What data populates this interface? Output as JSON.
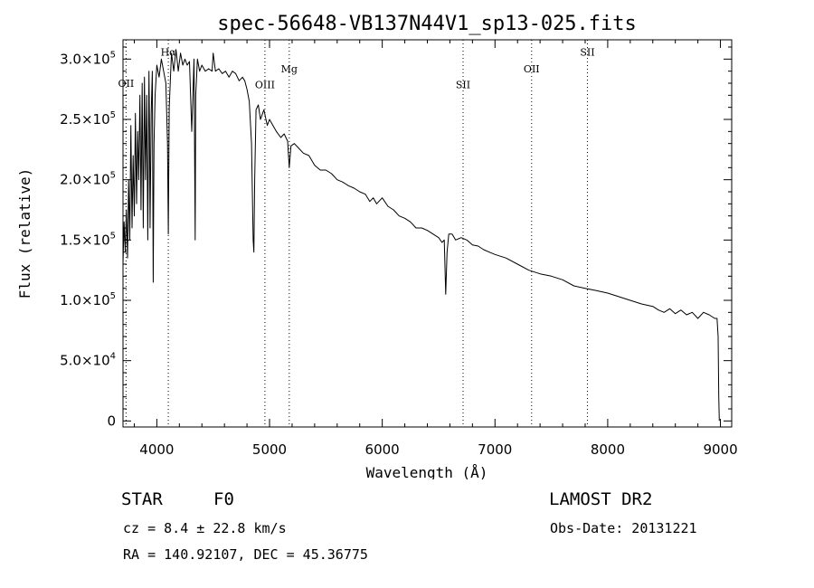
{
  "chart_data": {
    "type": "line",
    "title": "spec-56648-VB137N44V1_sp13-025.fits",
    "xlabel": "Wavelength (Å)",
    "ylabel": "Flux (relative)",
    "xlim": [
      3700,
      9100
    ],
    "ylim": [
      -5000,
      316000
    ],
    "x_ticks": [
      4000,
      5000,
      6000,
      7000,
      8000,
      9000
    ],
    "y_ticks": [
      {
        "value": 0,
        "label": "0"
      },
      {
        "value": 50000,
        "label": "5.0×10^4"
      },
      {
        "value": 100000,
        "label": "1.0×10^5"
      },
      {
        "value": 150000,
        "label": "1.5×10^5"
      },
      {
        "value": 200000,
        "label": "2.0×10^5"
      },
      {
        "value": 250000,
        "label": "2.5×10^5"
      },
      {
        "value": 300000,
        "label": "3.0×10^5"
      }
    ],
    "line_markers": [
      {
        "label": "OII",
        "x": 3727,
        "label_y": 277000
      },
      {
        "label": "Hα",
        "x": 4102,
        "label_y": 303000
      },
      {
        "label": "OIII",
        "x": 4959,
        "label_y": 276000
      },
      {
        "label": "Mg",
        "x": 5175,
        "label_y": 289000
      },
      {
        "label": "SII",
        "x": 6717,
        "label_y": 276000
      },
      {
        "label": "OII",
        "x": 7325,
        "label_y": 289000
      },
      {
        "label": "SII",
        "x": 7820,
        "label_y": 303000
      }
    ],
    "series": [
      {
        "x": [
          3700,
          3710,
          3720,
          3730,
          3740,
          3750,
          3760,
          3770,
          3780,
          3790,
          3800,
          3810,
          3820,
          3830,
          3840,
          3850,
          3860,
          3870,
          3880,
          3890,
          3900,
          3910,
          3920,
          3930,
          3935,
          3940,
          3950,
          3960,
          3968,
          3975,
          3985,
          4000,
          4020,
          4040,
          4060,
          4080,
          4095,
          4102,
          4110,
          4130,
          4150,
          4170,
          4190,
          4210,
          4230,
          4250,
          4270,
          4290,
          4310,
          4330,
          4340,
          4345,
          4360,
          4380,
          4400,
          4430,
          4460,
          4490,
          4500,
          4520,
          4550,
          4580,
          4610,
          4640,
          4670,
          4700,
          4730,
          4760,
          4780,
          4800,
          4820,
          4840,
          4855,
          4861,
          4868,
          4880,
          4900,
          4920,
          4950,
          4980,
          5000,
          5030,
          5060,
          5100,
          5130,
          5160,
          5175,
          5190,
          5220,
          5260,
          5300,
          5350,
          5400,
          5450,
          5500,
          5550,
          5600,
          5650,
          5700,
          5750,
          5800,
          5850,
          5890,
          5920,
          5950,
          6000,
          6050,
          6100,
          6150,
          6200,
          6250,
          6300,
          6350,
          6400,
          6450,
          6500,
          6530,
          6550,
          6563,
          6575,
          6590,
          6620,
          6650,
          6700,
          6750,
          6800,
          6850,
          6900,
          6950,
          7000,
          7100,
          7200,
          7300,
          7400,
          7500,
          7600,
          7700,
          7800,
          7900,
          8000,
          8100,
          8200,
          8300,
          8400,
          8450,
          8500,
          8550,
          8600,
          8650,
          8700,
          8750,
          8800,
          8850,
          8900,
          8950,
          8970,
          8980,
          8985,
          8990
        ],
        "values": [
          130000,
          165000,
          140000,
          175000,
          135000,
          200000,
          150000,
          245000,
          160000,
          220000,
          170000,
          255000,
          180000,
          240000,
          200000,
          270000,
          175000,
          280000,
          160000,
          285000,
          200000,
          270000,
          150000,
          290000,
          245000,
          160000,
          255000,
          290000,
          115000,
          230000,
          270000,
          295000,
          285000,
          300000,
          290000,
          280000,
          230000,
          155000,
          260000,
          305000,
          290000,
          308000,
          290000,
          305000,
          295000,
          300000,
          295000,
          298000,
          240000,
          300000,
          150000,
          270000,
          300000,
          290000,
          295000,
          290000,
          292000,
          290000,
          305000,
          290000,
          292000,
          288000,
          290000,
          285000,
          290000,
          288000,
          282000,
          285000,
          282000,
          275000,
          265000,
          230000,
          150000,
          140000,
          200000,
          258000,
          262000,
          250000,
          258000,
          245000,
          250000,
          245000,
          240000,
          235000,
          238000,
          232000,
          210000,
          228000,
          230000,
          226000,
          222000,
          220000,
          212000,
          208000,
          208000,
          205000,
          200000,
          198000,
          195000,
          193000,
          190000,
          188000,
          182000,
          185000,
          180000,
          185000,
          178000,
          175000,
          170000,
          168000,
          165000,
          160000,
          160000,
          158000,
          155000,
          152000,
          148000,
          150000,
          105000,
          140000,
          155000,
          155000,
          150000,
          152000,
          150000,
          146000,
          145000,
          142000,
          140000,
          138000,
          135000,
          130000,
          125000,
          122000,
          120000,
          117000,
          112000,
          110000,
          108000,
          106000,
          103000,
          100000,
          97000,
          95000,
          92000,
          90000,
          93000,
          89000,
          92000,
          88000,
          90000,
          85000,
          90000,
          88000,
          85000,
          85000,
          70000,
          20000,
          0
        ]
      }
    ]
  },
  "info": {
    "object_type": "STAR",
    "subclass": "F0",
    "survey": "LAMOST DR2",
    "cz": "cz = 8.4 ± 22.8 km/s",
    "obs_date": "Obs-Date: 20131221",
    "coords": "RA = 140.92107, DEC =  45.36775"
  },
  "colors": {
    "background": "#ffffff",
    "ink": "#000000",
    "marker_line": "#000000"
  }
}
